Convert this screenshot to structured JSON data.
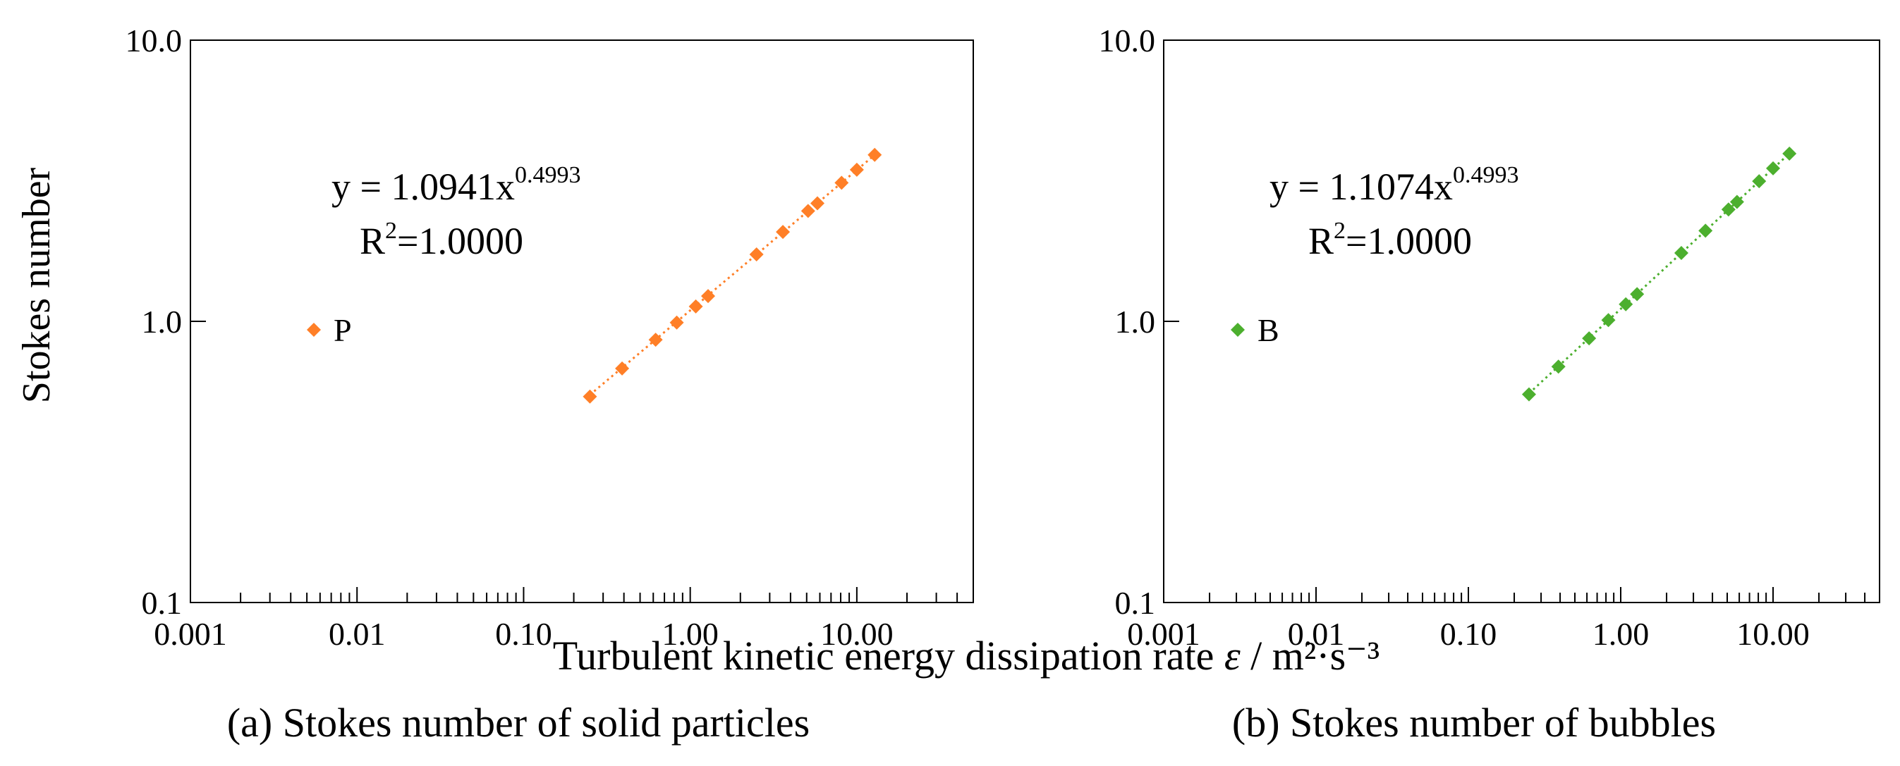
{
  "figure": {
    "y_axis_title": "Stokes number",
    "x_axis_title_main": "Turbulent kinetic energy dissipation rate ",
    "x_axis_title_symbol": "ε",
    "x_axis_title_unit": " / m²·s⁻³"
  },
  "chart_data": [
    {
      "type": "scatter",
      "caption": "(a) Stokes number of solid particles",
      "x_scale": "log",
      "y_scale": "log",
      "xlim": [
        0.001,
        50
      ],
      "ylim": [
        0.1,
        10
      ],
      "x_tick_labels": [
        "0.001",
        "0.01",
        "0.10",
        "1.00",
        "10.00"
      ],
      "x_tick_values": [
        0.001,
        0.01,
        0.1,
        1,
        10
      ],
      "y_tick_labels": [
        "0.1",
        "1.0",
        "10.0"
      ],
      "y_tick_values": [
        0.1,
        1,
        10
      ],
      "legend": {
        "label": "P",
        "position": "left-middle"
      },
      "equation": {
        "base": "y = 1.0941x",
        "exponent": "0.4993",
        "r2_prefix": "R",
        "r2_exponent": "2",
        "r2_value": "=1.0000"
      },
      "trendline": {
        "a": 1.0941,
        "b": 0.4993,
        "style": "dotted"
      },
      "color": "#FF7F27",
      "series": [
        {
          "name": "P",
          "x": [
            0.25,
            0.39,
            0.62,
            0.83,
            1.08,
            1.28,
            2.5,
            3.6,
            5.1,
            5.8,
            8.1,
            10.0,
            12.8
          ],
          "y": [
            0.54,
            0.68,
            0.86,
            0.99,
            1.13,
            1.23,
            1.73,
            2.08,
            2.47,
            2.63,
            3.11,
            3.46,
            3.91
          ]
        }
      ]
    },
    {
      "type": "scatter",
      "caption": "(b) Stokes number of bubbles",
      "x_scale": "log",
      "y_scale": "log",
      "xlim": [
        0.001,
        50
      ],
      "ylim": [
        0.1,
        10
      ],
      "x_tick_labels": [
        "0.001",
        "0.01",
        "0.10",
        "1.00",
        "10.00"
      ],
      "x_tick_values": [
        0.001,
        0.01,
        0.1,
        1,
        10
      ],
      "y_tick_labels": [
        "0.1",
        "1.0",
        "10.0"
      ],
      "y_tick_values": [
        0.1,
        1,
        10
      ],
      "legend": {
        "label": "B",
        "position": "left-middle"
      },
      "equation": {
        "base": "y = 1.1074x",
        "exponent": "0.4993",
        "r2_prefix": "R",
        "r2_exponent": "2",
        "r2_value": "=1.0000"
      },
      "trendline": {
        "a": 1.1074,
        "b": 0.4993,
        "style": "dotted"
      },
      "color": "#4CAF2E",
      "series": [
        {
          "name": "B",
          "x": [
            0.25,
            0.39,
            0.62,
            0.83,
            1.08,
            1.28,
            2.5,
            3.6,
            5.1,
            5.8,
            8.1,
            10.0,
            12.8
          ],
          "y": [
            0.55,
            0.69,
            0.87,
            1.01,
            1.15,
            1.25,
            1.75,
            2.1,
            2.5,
            2.66,
            3.15,
            3.5,
            3.95
          ]
        }
      ]
    }
  ]
}
